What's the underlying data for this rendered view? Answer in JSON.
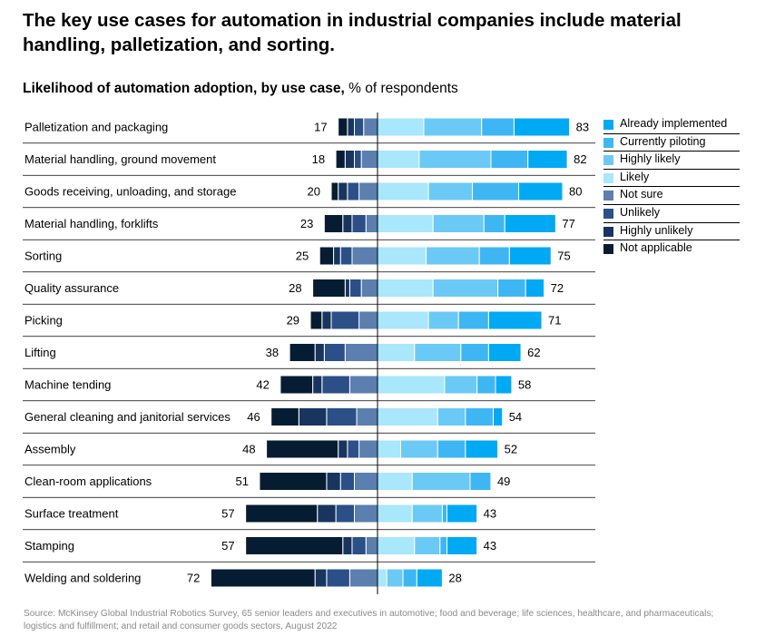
{
  "title": "The key use cases for automation in industrial companies include material handling, palletization, and sorting.",
  "subtitle_bold": "Likelihood of automation adoption, by use case,",
  "subtitle_rest": " % of respondents",
  "source": "Source: McKinsey Global Industrial Robotics Survey, 65 senior leaders and executives in automotive; food and beverage; life sciences, healthcare, and pharmaceuticals; logistics and fulfillment; and retail and consumer goods sectors, August 2022",
  "legend": [
    {
      "name": "Already implemented",
      "color": "#00A9F4"
    },
    {
      "name": "Currently piloting",
      "color": "#3FB6F4"
    },
    {
      "name": "Highly likely",
      "color": "#6BC9F6"
    },
    {
      "name": "Likely",
      "color": "#A8E7FC"
    },
    {
      "name": "Not sure",
      "color": "#5B7FAE"
    },
    {
      "name": "Unlikely",
      "color": "#2A5087"
    },
    {
      "name": "Highly unlikely",
      "color": "#17355F"
    },
    {
      "name": "Not applicable",
      "color": "#061C33"
    }
  ],
  "chart_data": {
    "type": "bar",
    "orientation": "horizontal-diverging",
    "categories": [
      "Palletization and packaging",
      "Material handling, ground movement",
      "Goods receiving, unloading, and storage",
      "Material handling, forklifts",
      "Sorting",
      "Quality assurance",
      "Picking",
      "Lifting",
      "Machine tending",
      "General cleaning and janitorial services",
      "Assembly",
      "Clean-room applications",
      "Surface treatment",
      "Stamping",
      "Welding and soldering"
    ],
    "positive_totals": [
      83,
      82,
      80,
      77,
      75,
      72,
      71,
      62,
      58,
      54,
      52,
      49,
      43,
      43,
      28
    ],
    "negative_totals": [
      17,
      18,
      20,
      23,
      25,
      28,
      29,
      38,
      42,
      46,
      48,
      51,
      57,
      57,
      72
    ],
    "positive_series": [
      {
        "name": "Likely",
        "values": [
          20,
          18,
          22,
          24,
          21,
          24,
          22,
          16,
          29,
          26,
          10,
          15,
          15,
          16,
          4
        ]
      },
      {
        "name": "Highly likely",
        "values": [
          25,
          31,
          19,
          22,
          23,
          28,
          13,
          20,
          14,
          12,
          16,
          25,
          13,
          11,
          7
        ]
      },
      {
        "name": "Currently piloting",
        "values": [
          14,
          16,
          20,
          9,
          13,
          12,
          13,
          12,
          8,
          12,
          12,
          9,
          2,
          3,
          6
        ]
      },
      {
        "name": "Already implemented",
        "values": [
          24,
          17,
          19,
          22,
          18,
          8,
          23,
          14,
          7,
          4,
          14,
          0,
          13,
          13,
          11
        ]
      }
    ],
    "negative_series": [
      {
        "name": "Not sure",
        "values": [
          6,
          7,
          8,
          5,
          11,
          7,
          8,
          14,
          12,
          9,
          8,
          10,
          10,
          5,
          12
        ]
      },
      {
        "name": "Unlikely",
        "values": [
          4,
          3,
          5,
          6,
          5,
          5,
          12,
          9,
          12,
          13,
          5,
          6,
          8,
          6,
          10
        ]
      },
      {
        "name": "Highly unlikely",
        "values": [
          3,
          4,
          4,
          4,
          3,
          2,
          4,
          4,
          4,
          12,
          4,
          6,
          8,
          4,
          5
        ]
      },
      {
        "name": "Not applicable",
        "values": [
          4,
          4,
          3,
          8,
          6,
          14,
          5,
          11,
          14,
          12,
          31,
          29,
          31,
          42,
          45
        ]
      }
    ],
    "xlabel": "",
    "ylabel": "",
    "legend_position": "right",
    "grid": false
  }
}
